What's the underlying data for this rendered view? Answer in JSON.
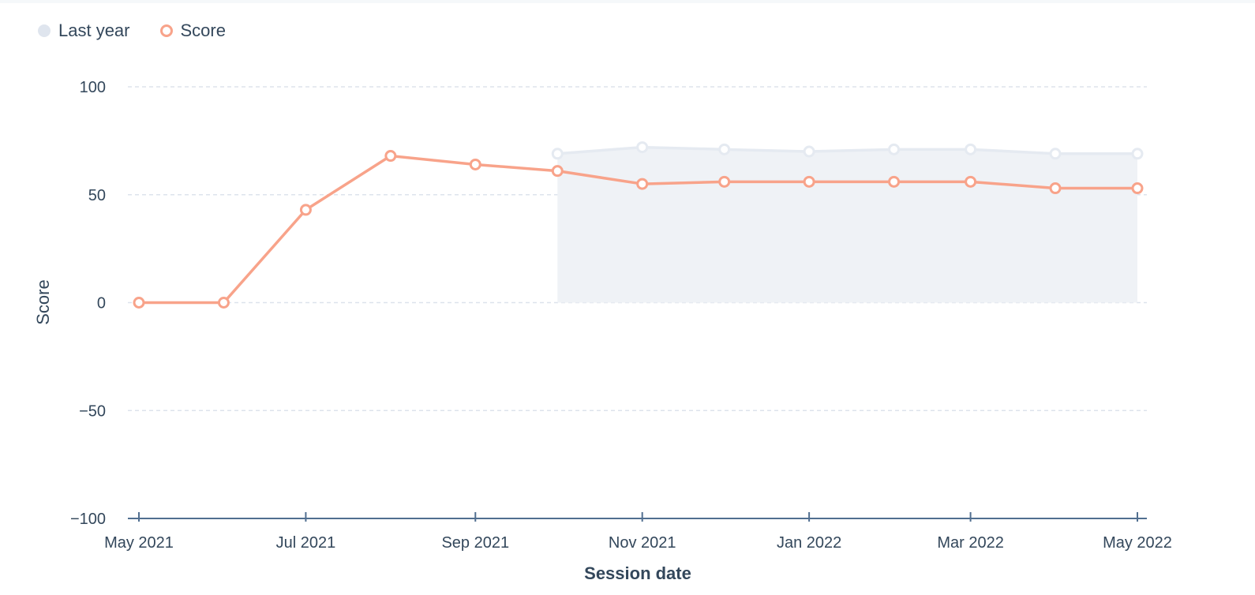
{
  "chart_data": {
    "type": "line",
    "xlabel": "Session date",
    "ylabel": "Score",
    "ylim": [
      -100,
      100
    ],
    "yticks": [
      100,
      50,
      0,
      -50,
      -100
    ],
    "ytick_labels": [
      "100",
      "50",
      "0",
      "−50",
      "−100"
    ],
    "xlim": [
      "2021-05-01",
      "2022-05-01"
    ],
    "xticks": [
      {
        "date": "2021-05-01",
        "label": "May 2021"
      },
      {
        "date": "2021-07-01",
        "label": "Jul 2021"
      },
      {
        "date": "2021-09-01",
        "label": "Sep 2021"
      },
      {
        "date": "2021-11-01",
        "label": "Nov 2021"
      },
      {
        "date": "2022-01-01",
        "label": "Jan 2022"
      },
      {
        "date": "2022-03-01",
        "label": "Mar 2022"
      },
      {
        "date": "2022-05-01",
        "label": "May 2022"
      }
    ],
    "grid": true,
    "legend_position": "top-left",
    "series": [
      {
        "name": "Last year",
        "style": "area",
        "color": "#e5eaf1",
        "fill": "#eff2f6",
        "points": [
          {
            "x": "2021-10-01",
            "y": 69
          },
          {
            "x": "2021-11-01",
            "y": 72
          },
          {
            "x": "2021-12-01",
            "y": 71
          },
          {
            "x": "2022-01-01",
            "y": 70
          },
          {
            "x": "2022-02-01",
            "y": 71
          },
          {
            "x": "2022-03-01",
            "y": 71
          },
          {
            "x": "2022-04-01",
            "y": 69
          },
          {
            "x": "2022-05-01",
            "y": 69
          }
        ]
      },
      {
        "name": "Score",
        "style": "line",
        "color": "#f8a38a",
        "points": [
          {
            "x": "2021-05-01",
            "y": 0
          },
          {
            "x": "2021-06-01",
            "y": 0
          },
          {
            "x": "2021-07-01",
            "y": 43
          },
          {
            "x": "2021-08-01",
            "y": 68
          },
          {
            "x": "2021-09-01",
            "y": 64
          },
          {
            "x": "2021-10-01",
            "y": 61
          },
          {
            "x": "2021-11-01",
            "y": 55
          },
          {
            "x": "2021-12-01",
            "y": 56
          },
          {
            "x": "2022-01-01",
            "y": 56
          },
          {
            "x": "2022-02-01",
            "y": 56
          },
          {
            "x": "2022-03-01",
            "y": 56
          },
          {
            "x": "2022-04-01",
            "y": 53
          },
          {
            "x": "2022-05-01",
            "y": 53
          }
        ]
      }
    ]
  }
}
